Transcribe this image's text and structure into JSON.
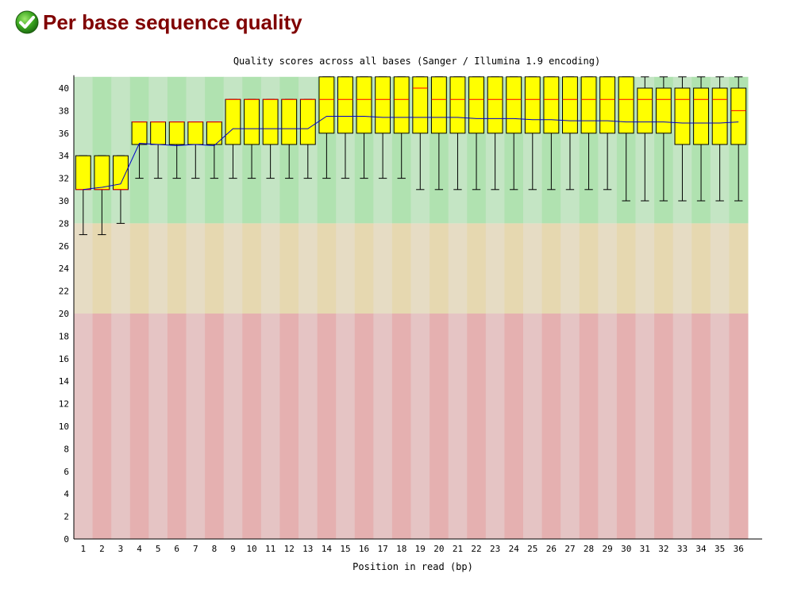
{
  "module": {
    "title": "Per base sequence quality",
    "status_icon": "pass-check-icon"
  },
  "colors": {
    "title": "#800000",
    "box_fill": "#ffff00",
    "median_line": "#ff0000",
    "mean_line": "#0000cc",
    "zone_good": [
      "#c4e5c4",
      "#b0e2b0"
    ],
    "zone_warn": [
      "#e6dcc4",
      "#e6d8b0"
    ],
    "zone_fail": [
      "#e5c4c4",
      "#e5b0b0"
    ]
  },
  "chart_data": {
    "type": "box",
    "title": "Quality scores across all bases (Sanger / Illumina 1.9 encoding)",
    "xlabel": "Position in read (bp)",
    "ylabel": "",
    "ylim": [
      0,
      41
    ],
    "yticks": [
      0,
      2,
      4,
      6,
      8,
      10,
      12,
      14,
      16,
      18,
      20,
      22,
      24,
      26,
      28,
      30,
      32,
      34,
      36,
      38,
      40
    ],
    "zones": [
      {
        "name": "good",
        "from": 28,
        "to": 41
      },
      {
        "name": "warn",
        "from": 20,
        "to": 28
      },
      {
        "name": "fail",
        "from": 0,
        "to": 20
      }
    ],
    "categories": [
      "1",
      "2",
      "3",
      "4",
      "5",
      "6",
      "7",
      "8",
      "9",
      "10",
      "11",
      "12",
      "13",
      "14",
      "15",
      "16",
      "17",
      "18",
      "19",
      "20",
      "21",
      "22",
      "23",
      "24",
      "25",
      "26",
      "27",
      "28",
      "29",
      "30",
      "31",
      "32",
      "33",
      "34",
      "35",
      "36"
    ],
    "whisker_low": [
      27,
      27,
      28,
      32,
      32,
      32,
      32,
      32,
      32,
      32,
      32,
      32,
      32,
      32,
      32,
      32,
      32,
      32,
      31,
      31,
      31,
      31,
      31,
      31,
      31,
      31,
      31,
      31,
      31,
      30,
      30,
      30,
      30,
      30,
      30,
      30
    ],
    "q1": [
      31,
      31,
      31,
      35,
      35,
      35,
      35,
      35,
      35,
      35,
      35,
      35,
      35,
      36,
      36,
      36,
      36,
      36,
      36,
      36,
      36,
      36,
      36,
      36,
      36,
      36,
      36,
      36,
      36,
      36,
      36,
      36,
      35,
      35,
      35,
      35
    ],
    "median": [
      31,
      31,
      31,
      37,
      37,
      37,
      37,
      37,
      39,
      39,
      39,
      39,
      39,
      39,
      39,
      39,
      39,
      39,
      40,
      39,
      39,
      39,
      39,
      39,
      39,
      39,
      39,
      39,
      39,
      39,
      39,
      39,
      39,
      39,
      39,
      38
    ],
    "q3": [
      34,
      34,
      34,
      37,
      37,
      37,
      37,
      37,
      39,
      39,
      39,
      39,
      39,
      41,
      41,
      41,
      41,
      41,
      41,
      41,
      41,
      41,
      41,
      41,
      41,
      41,
      41,
      41,
      41,
      41,
      40,
      40,
      40,
      40,
      40,
      40
    ],
    "whisker_high": [
      34,
      34,
      34,
      37,
      37,
      37,
      37,
      37,
      39,
      39,
      39,
      39,
      39,
      41,
      41,
      41,
      41,
      41,
      41,
      41,
      41,
      41,
      41,
      41,
      41,
      41,
      41,
      41,
      41,
      41,
      41,
      41,
      41,
      41,
      41,
      41
    ],
    "mean": [
      31.0,
      31.2,
      31.5,
      35.1,
      35.0,
      34.9,
      35.0,
      34.9,
      36.4,
      36.4,
      36.4,
      36.4,
      36.4,
      37.5,
      37.5,
      37.5,
      37.4,
      37.4,
      37.4,
      37.4,
      37.4,
      37.3,
      37.3,
      37.3,
      37.2,
      37.2,
      37.1,
      37.1,
      37.1,
      37.0,
      37.0,
      37.0,
      36.9,
      36.9,
      36.9,
      37.0
    ]
  }
}
